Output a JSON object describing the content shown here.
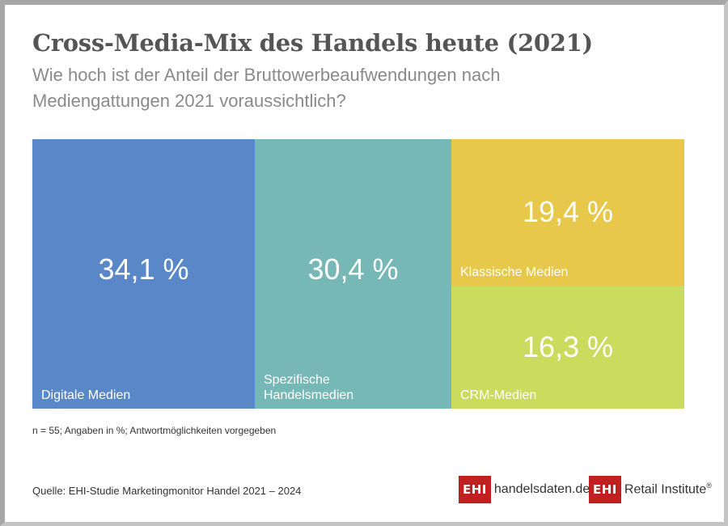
{
  "title": "Cross-Media-Mix des Handels heute (2021)",
  "subtitle": "Wie hoch ist der Anteil der Bruttowerbeaufwendungen nach Mediengattungen 2021 voraussichtlich?",
  "note": "n = 55; Angaben in %; Antwortmöglichkeiten vorgegeben",
  "source": "Quelle: EHI-Studie Marketingmonitor Handel 2021 – 2024",
  "logos": {
    "left": {
      "box": "EHI",
      "text": "handelsdaten.de"
    },
    "right": {
      "box": "EHI",
      "text": "Retail Institute",
      "mark": "®"
    }
  },
  "chart_data": {
    "type": "treemap",
    "unit": "%",
    "items": [
      {
        "name": "Digitale Medien",
        "value": 34.1,
        "value_label": "34,1 %",
        "color": "#5a87c8"
      },
      {
        "name": "Spezifische Handelsmedien",
        "value": 30.4,
        "value_label": "30,4 %",
        "color": "#76b8b5"
      },
      {
        "name": "Klassische Medien",
        "value": 19.4,
        "value_label": "19,4 %",
        "color": "#e8c84a"
      },
      {
        "name": "CRM-Medien",
        "value": 16.3,
        "value_label": "16,3 %",
        "color": "#cadc5e"
      }
    ]
  }
}
